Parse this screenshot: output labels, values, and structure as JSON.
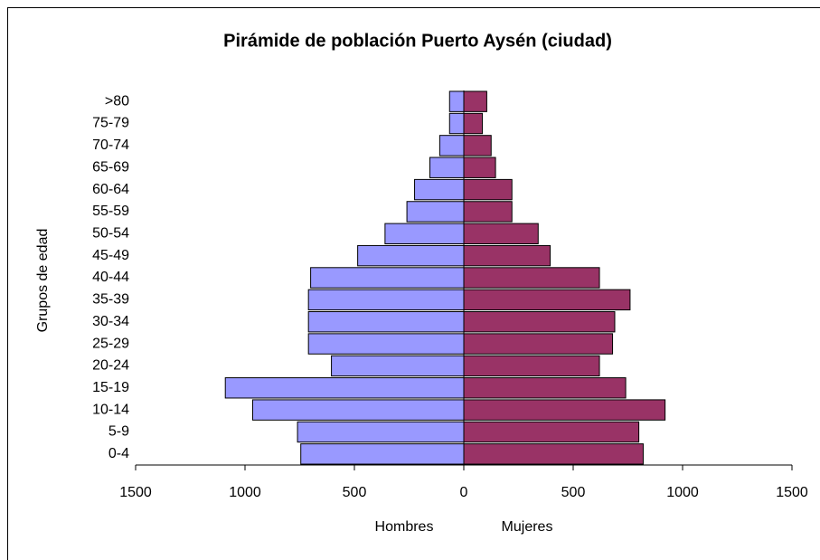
{
  "chart_data": {
    "type": "pyramid",
    "title": "Pirámide de población Puerto Aysén (ciudad)",
    "y_label": "Grupos de edad",
    "categories": [
      "0-4",
      "5-9",
      "10-14",
      "15-19",
      "20-24",
      "25-29",
      "30-34",
      "35-39",
      "40-44",
      "45-49",
      "50-54",
      "55-59",
      "60-64",
      "65-69",
      "70-74",
      "75-79",
      ">80"
    ],
    "series": [
      {
        "name": "Hombres",
        "color": "#9999ff",
        "values": [
          -745,
          -760,
          -965,
          -1090,
          -605,
          -710,
          -710,
          -710,
          -700,
          -485,
          -360,
          -260,
          -225,
          -155,
          -110,
          -65,
          -65
        ]
      },
      {
        "name": "Mujeres",
        "color": "#993366",
        "values": [
          820,
          800,
          920,
          740,
          620,
          680,
          690,
          760,
          620,
          395,
          340,
          220,
          220,
          145,
          125,
          85,
          105
        ]
      }
    ],
    "xlim": [
      -1500,
      1500
    ],
    "xticks": [
      {
        "value": -1500,
        "label": "1500"
      },
      {
        "value": -1000,
        "label": "1000"
      },
      {
        "value": -500,
        "label": "500"
      },
      0,
      500,
      1000,
      1500
    ]
  }
}
